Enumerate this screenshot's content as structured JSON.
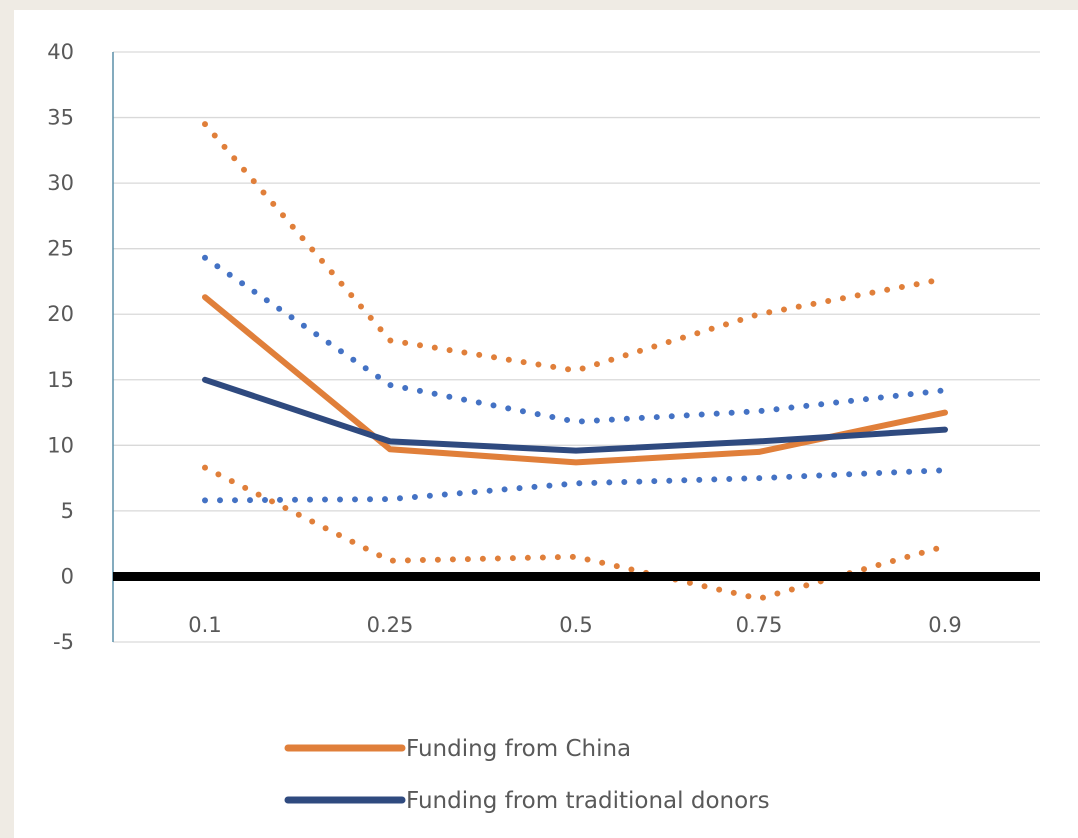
{
  "chart_data": {
    "type": "line",
    "title": "",
    "xlabel": "",
    "ylabel": "",
    "categories": [
      "0.1",
      "0.25",
      "0.5",
      "0.75",
      "0.9"
    ],
    "ylim": [
      -5,
      40
    ],
    "yticks": [
      40,
      35,
      30,
      25,
      20,
      15,
      10,
      5,
      0,
      -5
    ],
    "grid": true,
    "legend_position": "bottom",
    "series": [
      {
        "name": "Funding from China",
        "role": "estimate",
        "style": "solid",
        "color": "#e07f3a",
        "values": [
          21.3,
          9.7,
          8.7,
          9.5,
          12.5
        ]
      },
      {
        "name": "Funding from traditional donors",
        "role": "estimate",
        "style": "solid",
        "color": "#2f4a7f",
        "values": [
          15.0,
          10.3,
          9.6,
          10.3,
          11.2
        ]
      },
      {
        "role": "upper bound",
        "style": "dotted",
        "color": "#e07f3a",
        "values": [
          34.5,
          18.0,
          15.7,
          20.0,
          22.7
        ]
      },
      {
        "role": "lower bound",
        "style": "dotted",
        "color": "#e07f3a",
        "values": [
          8.3,
          1.2,
          1.5,
          -1.7,
          2.3
        ]
      },
      {
        "role": "upper bound",
        "style": "dotted",
        "color": "#4472c4",
        "values": [
          24.3,
          14.6,
          11.8,
          12.6,
          14.2
        ]
      },
      {
        "role": "lower bound",
        "style": "dotted",
        "color": "#4472c4",
        "values": [
          5.8,
          5.9,
          7.1,
          7.5,
          8.1
        ]
      }
    ],
    "zero_line": {
      "value": 0,
      "color": "#000000"
    },
    "legend": [
      {
        "label": "Funding from China",
        "color": "#e07f3a"
      },
      {
        "label": "Funding from traditional donors",
        "color": "#2f4a7f"
      }
    ]
  }
}
